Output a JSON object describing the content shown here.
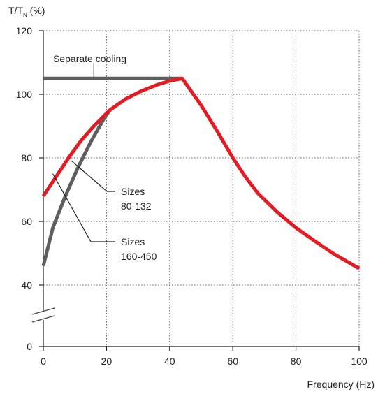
{
  "chart_data": {
    "type": "line",
    "ylabel": {
      "base": "T/T",
      "subscript": "N",
      "suffix": " (%)"
    },
    "xlabel": "Frequency (Hz)",
    "xlim": [
      0,
      100
    ],
    "ylim": [
      0,
      120
    ],
    "x_ticks": [
      0,
      20,
      40,
      60,
      80,
      100
    ],
    "y_ticks": [
      0,
      40,
      60,
      80,
      100,
      120
    ],
    "y_axis_break": "between 0 and 40",
    "grid": true,
    "grid_style": "dotted",
    "series": [
      {
        "color": "#5f5f5f",
        "points": [
          [
            0,
            46
          ],
          [
            3,
            58
          ],
          [
            7,
            68
          ],
          [
            11,
            77
          ],
          [
            15,
            85
          ],
          [
            19,
            92
          ],
          [
            21,
            95
          ]
        ]
      },
      {
        "color": "#5f5f5f",
        "points": [
          [
            0,
            105
          ],
          [
            44,
            105
          ]
        ]
      },
      {
        "color": "#e51b24",
        "points": [
          [
            0,
            68
          ],
          [
            4,
            74
          ],
          [
            8,
            80
          ],
          [
            12,
            85.5
          ],
          [
            16,
            90
          ],
          [
            21,
            95
          ],
          [
            26,
            98.5
          ],
          [
            31,
            101
          ],
          [
            36,
            103
          ],
          [
            40,
            104.2
          ],
          [
            44,
            105
          ],
          [
            50,
            96.5
          ],
          [
            55,
            88.5
          ],
          [
            60,
            80
          ],
          [
            64,
            74
          ],
          [
            68,
            68.8
          ],
          [
            74,
            63
          ],
          [
            80,
            58
          ],
          [
            86,
            53.8
          ],
          [
            92,
            49.8
          ],
          [
            100,
            45.2
          ]
        ]
      }
    ],
    "annotations": [
      {
        "text": "Separate cooling",
        "points_to": [
          16,
          105
        ]
      },
      {
        "lines": [
          "Sizes",
          "80-132"
        ],
        "points_to": [
          9,
          79
        ]
      },
      {
        "lines": [
          "Sizes",
          "160-450"
        ],
        "points_to": [
          3,
          75
        ]
      }
    ]
  }
}
